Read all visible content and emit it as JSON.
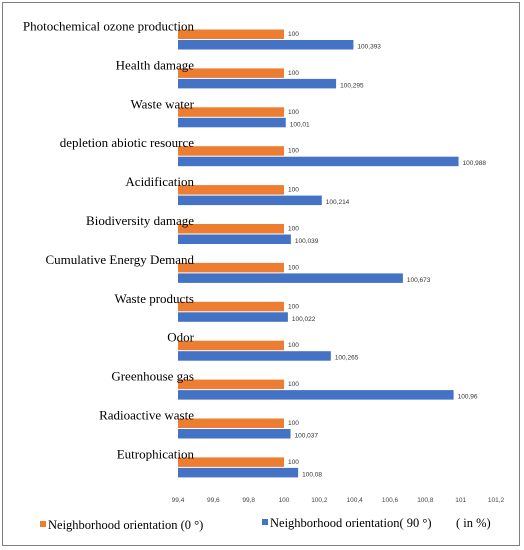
{
  "chart_data": {
    "type": "bar",
    "orientation": "horizontal",
    "categories": [
      "Photochemical ozone production",
      "Health damage",
      "Waste water",
      "depletion abiotic resource",
      "Acidification",
      "Biodiversity damage",
      "Cumulative Energy Demand",
      "Waste products",
      "Odor",
      "Greenhouse gas",
      "Radioactive waste",
      "Eutrophication"
    ],
    "series": [
      {
        "name": "Neighborhood orientation (0 °)",
        "color": "#ED7D31",
        "values": [
          100,
          100,
          100,
          100,
          100,
          100,
          100,
          100,
          100,
          100,
          100,
          100
        ],
        "labels": [
          "100",
          "100",
          "100",
          "100",
          "100",
          "100",
          "100",
          "100",
          "100",
          "100",
          "100",
          "100"
        ]
      },
      {
        "name": "Neighborhood orientation( 90 °)",
        "color": "#4472C4",
        "values": [
          100.393,
          100.295,
          100.01,
          100.988,
          100.214,
          100.039,
          100.673,
          100.022,
          100.265,
          100.96,
          100.037,
          100.08
        ],
        "labels": [
          "100,393",
          "100,295",
          "100,01",
          "100,988",
          "100,214",
          "100,039",
          "100,673",
          "100,022",
          "100,265",
          "100,96",
          "100,037",
          "100,08"
        ]
      }
    ],
    "xlim": [
      99.4,
      101.2
    ],
    "xticks": [
      99.4,
      99.6,
      99.8,
      100,
      100.2,
      100.4,
      100.6,
      100.8,
      101,
      101.2
    ],
    "xtick_labels": [
      "99,4",
      "99,6",
      "99,8",
      "100",
      "100,2",
      "100,4",
      "100,6",
      "100,8",
      "101",
      "101,2"
    ],
    "legend_note": "( in %)",
    "legend_position": "bottom",
    "grid": false
  }
}
